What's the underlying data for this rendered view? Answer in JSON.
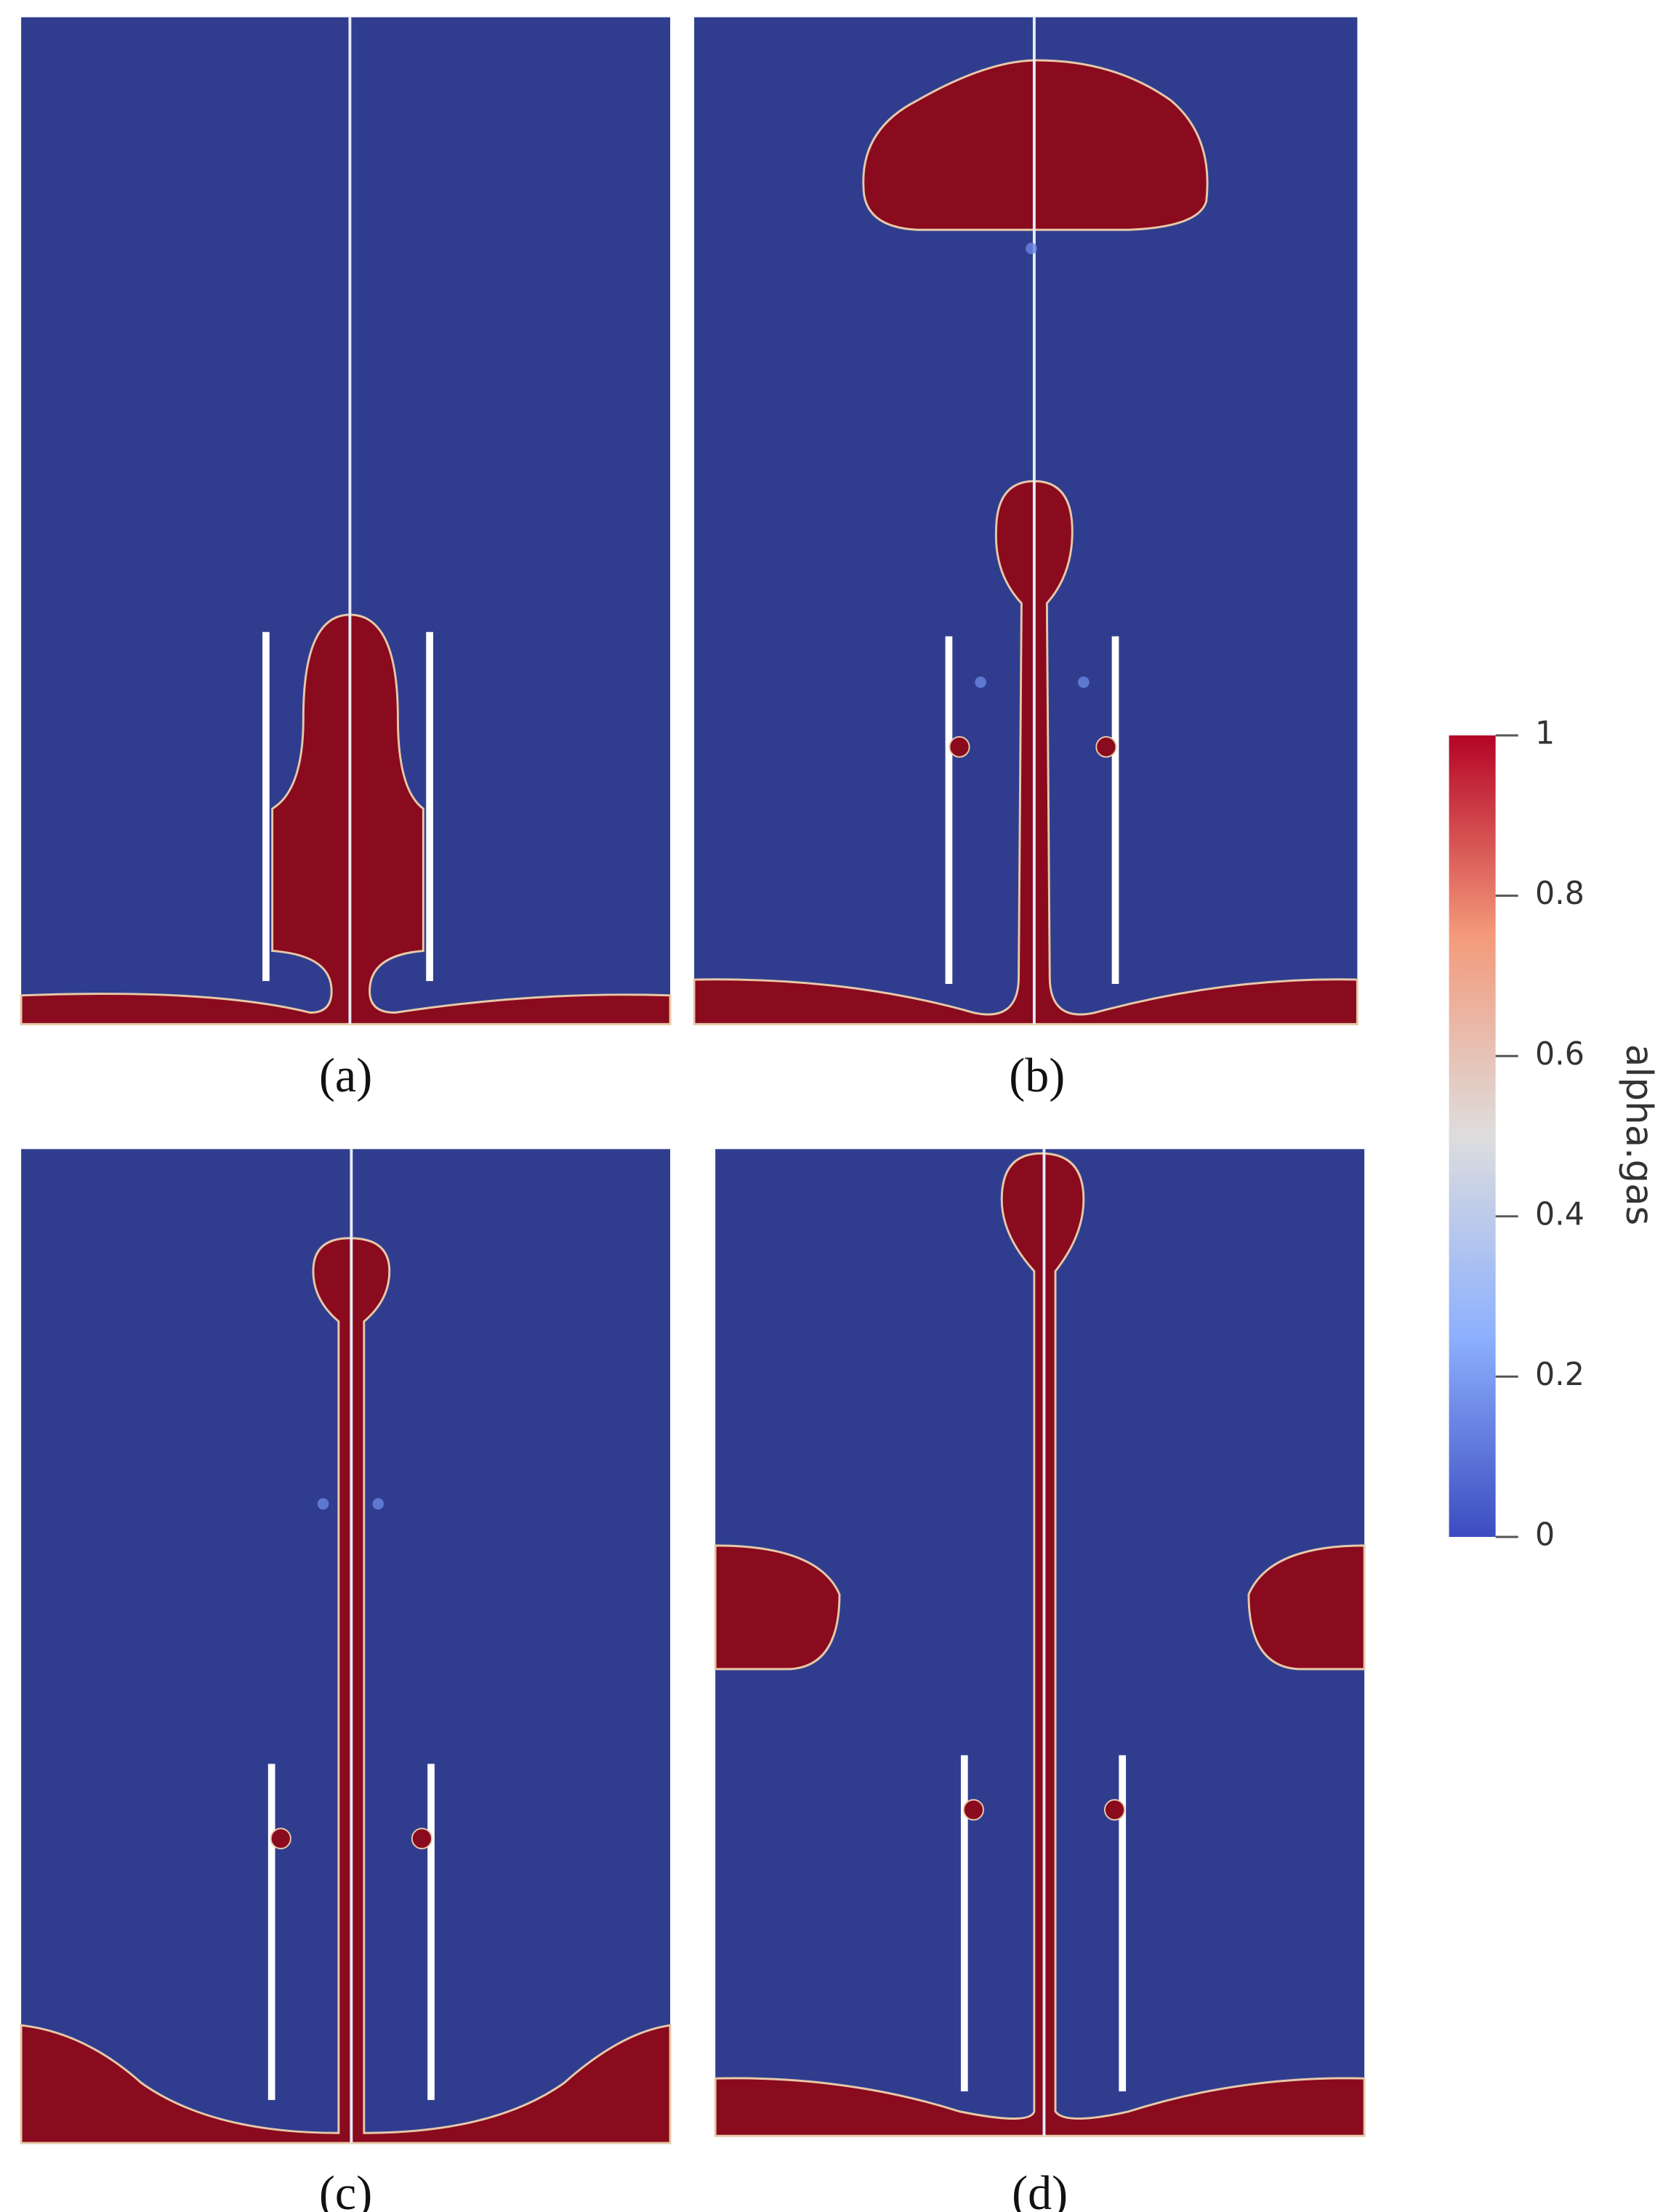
{
  "panels": [
    {
      "label": "(a)"
    },
    {
      "label": "(b)"
    },
    {
      "label": "(c)"
    },
    {
      "label": "(d)"
    }
  ],
  "colorbar": {
    "title": "alpha.gas",
    "lim": [
      0,
      1
    ],
    "ticks": [
      0,
      0.2,
      0.4,
      0.6,
      0.8,
      1
    ]
  }
}
